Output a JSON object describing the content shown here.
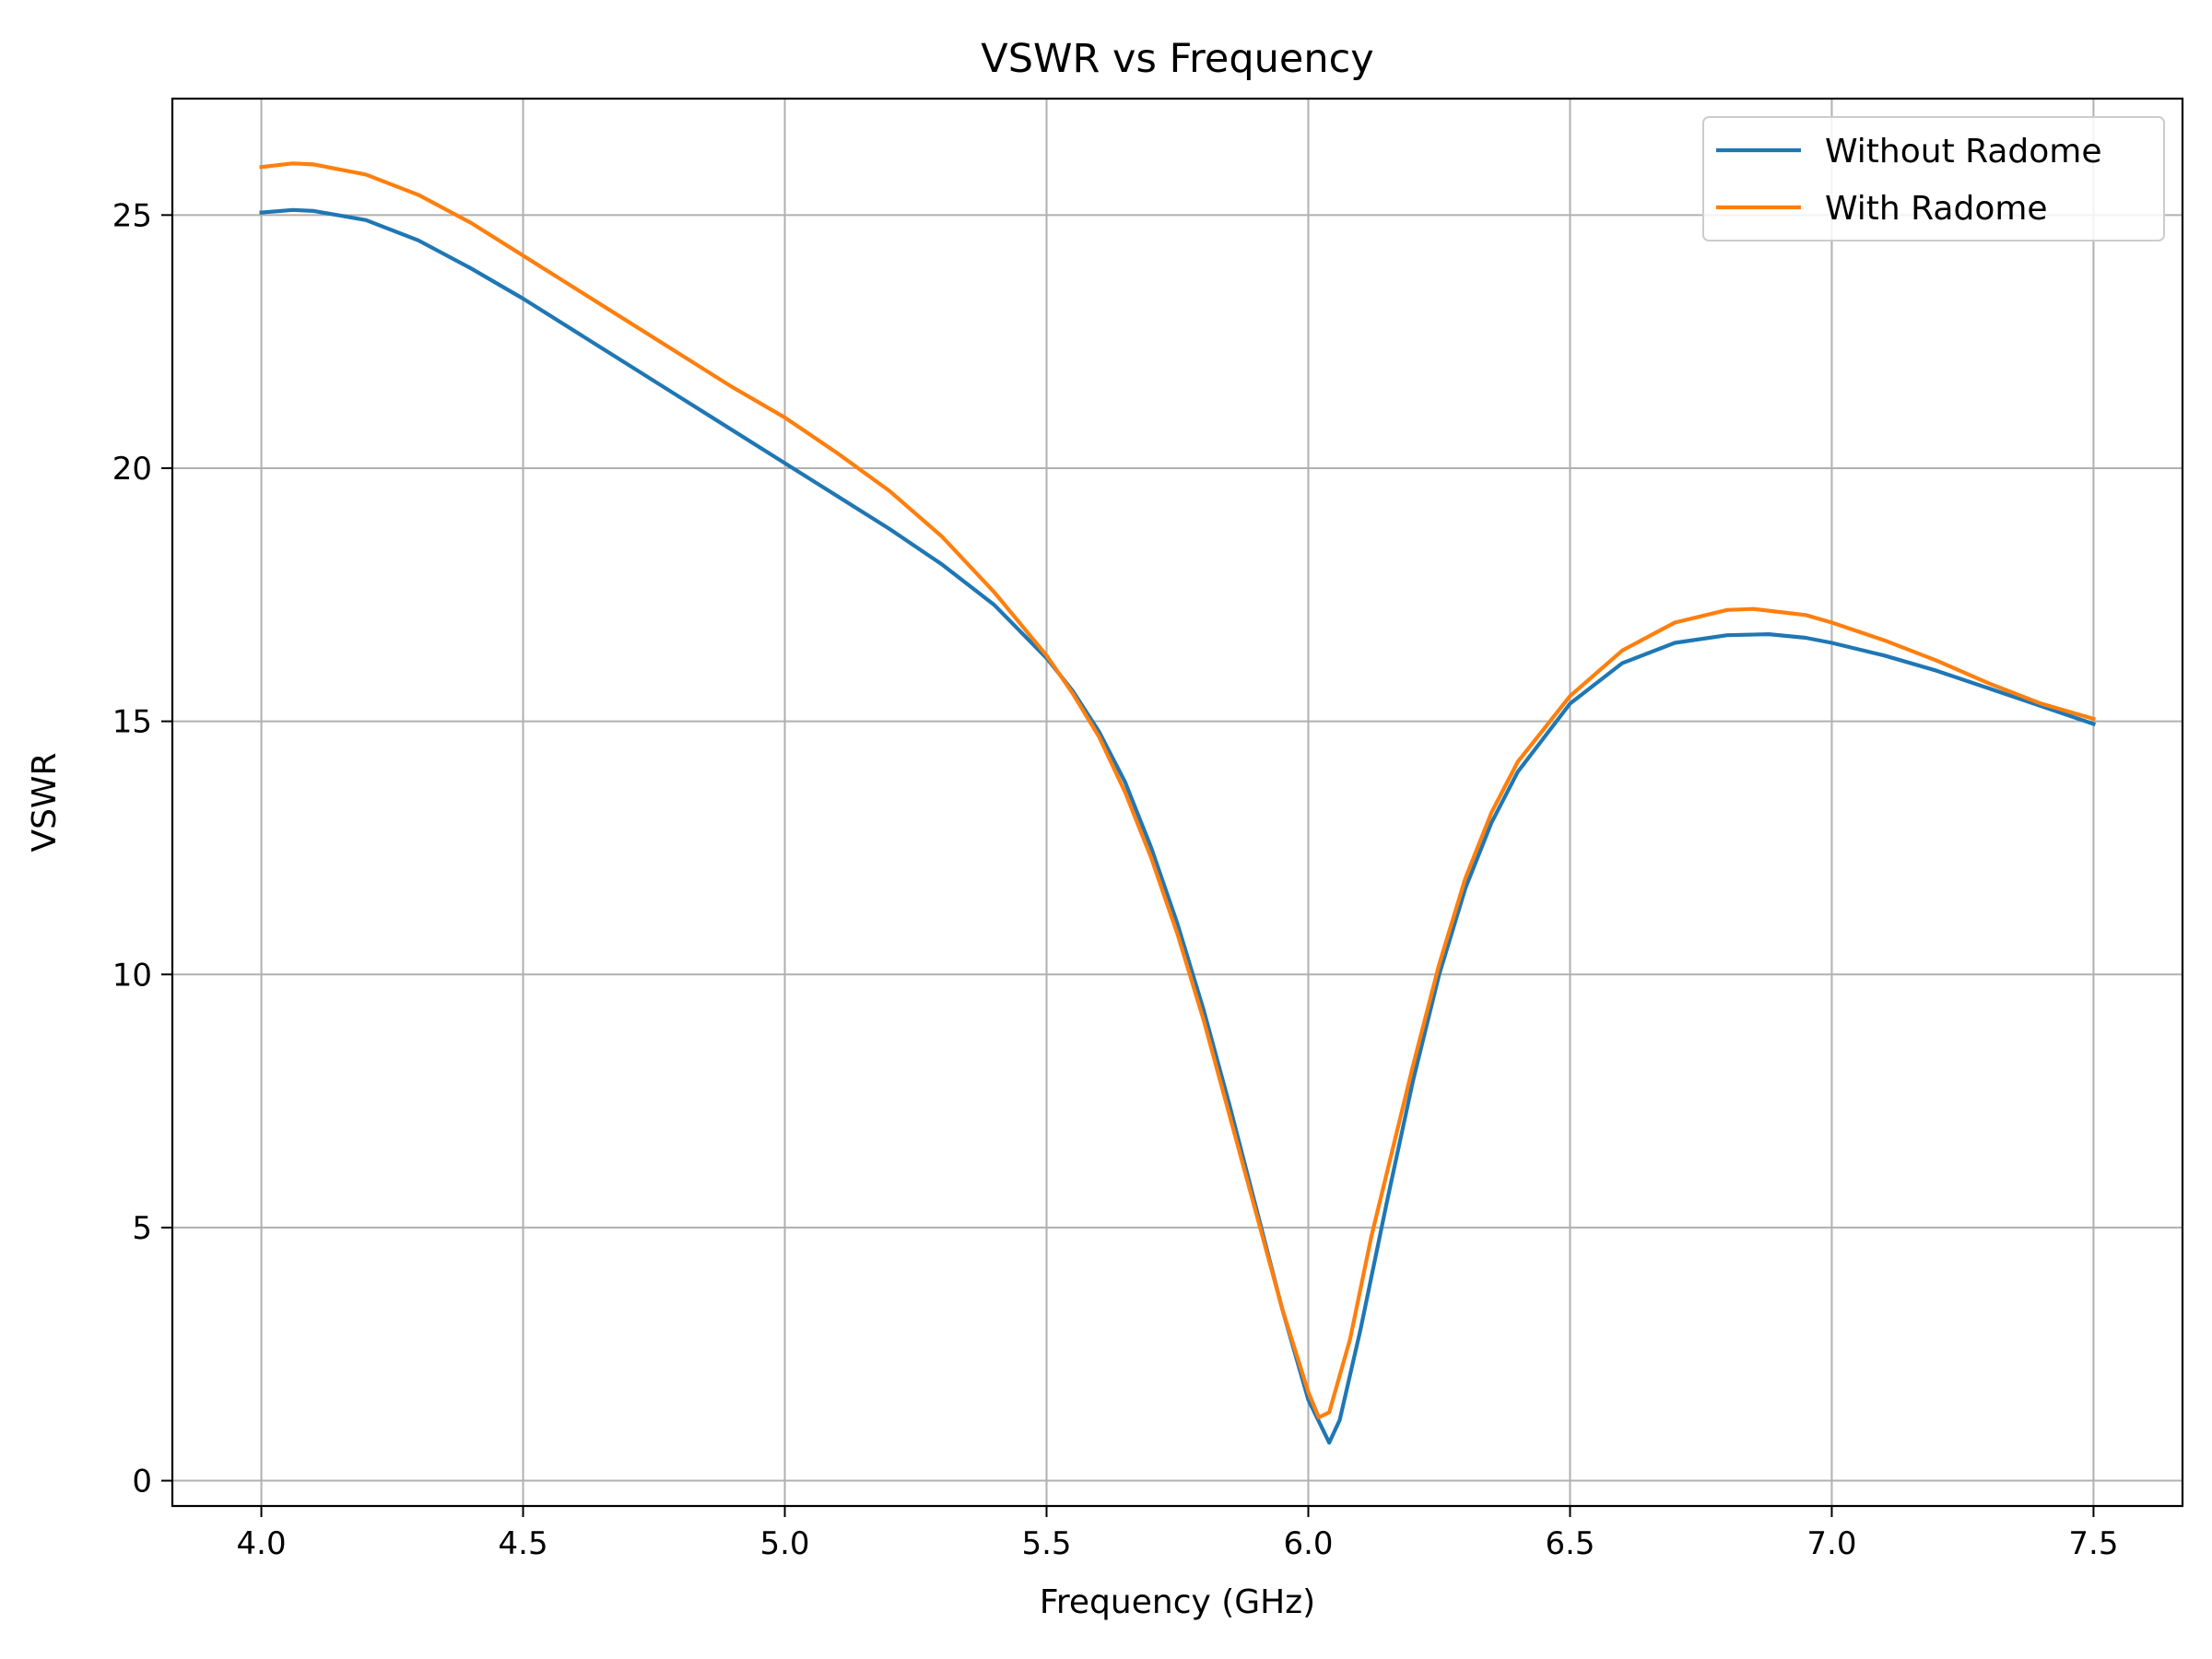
{
  "chart_data": {
    "type": "line",
    "title": "VSWR vs Frequency",
    "xlabel": "Frequency (GHz)",
    "ylabel": "VSWR",
    "xlim": [
      3.83,
      7.67
    ],
    "ylim": [
      -0.5,
      27.3
    ],
    "grid": true,
    "legend_position": "top-right",
    "x_ticks": [
      4.0,
      4.5,
      5.0,
      5.5,
      6.0,
      6.5,
      7.0,
      7.5
    ],
    "x_tick_labels": [
      "4.0",
      "4.5",
      "5.0",
      "5.5",
      "6.0",
      "6.5",
      "7.0",
      "7.5"
    ],
    "y_ticks": [
      0,
      5,
      10,
      15,
      20,
      25
    ],
    "y_tick_labels": [
      "0",
      "5",
      "10",
      "15",
      "20",
      "25"
    ],
    "series": [
      {
        "name": "Without Radome",
        "color": "#1f77b4",
        "points": [
          [
            4.0,
            25.05
          ],
          [
            4.06,
            25.1
          ],
          [
            4.1,
            25.08
          ],
          [
            4.2,
            24.9
          ],
          [
            4.3,
            24.5
          ],
          [
            4.4,
            23.95
          ],
          [
            4.5,
            23.35
          ],
          [
            4.6,
            22.7
          ],
          [
            4.7,
            22.05
          ],
          [
            4.8,
            21.4
          ],
          [
            4.9,
            20.75
          ],
          [
            5.0,
            20.1
          ],
          [
            5.1,
            19.45
          ],
          [
            5.2,
            18.8
          ],
          [
            5.3,
            18.1
          ],
          [
            5.4,
            17.3
          ],
          [
            5.5,
            16.25
          ],
          [
            5.55,
            15.6
          ],
          [
            5.6,
            14.8
          ],
          [
            5.65,
            13.8
          ],
          [
            5.7,
            12.5
          ],
          [
            5.75,
            11.0
          ],
          [
            5.8,
            9.3
          ],
          [
            5.85,
            7.4
          ],
          [
            5.9,
            5.4
          ],
          [
            5.95,
            3.4
          ],
          [
            6.0,
            1.6
          ],
          [
            6.04,
            0.75
          ],
          [
            6.06,
            1.2
          ],
          [
            6.1,
            3.0
          ],
          [
            6.15,
            5.5
          ],
          [
            6.2,
            7.9
          ],
          [
            6.25,
            10.0
          ],
          [
            6.3,
            11.7
          ],
          [
            6.35,
            13.0
          ],
          [
            6.4,
            14.0
          ],
          [
            6.5,
            15.35
          ],
          [
            6.6,
            16.15
          ],
          [
            6.7,
            16.55
          ],
          [
            6.8,
            16.7
          ],
          [
            6.88,
            16.72
          ],
          [
            6.95,
            16.65
          ],
          [
            7.0,
            16.55
          ],
          [
            7.1,
            16.3
          ],
          [
            7.2,
            16.0
          ],
          [
            7.3,
            15.65
          ],
          [
            7.4,
            15.3
          ],
          [
            7.5,
            14.95
          ]
        ]
      },
      {
        "name": "With Radome",
        "color": "#ff7f0e",
        "points": [
          [
            4.0,
            25.95
          ],
          [
            4.06,
            26.02
          ],
          [
            4.1,
            26.0
          ],
          [
            4.2,
            25.8
          ],
          [
            4.3,
            25.4
          ],
          [
            4.4,
            24.85
          ],
          [
            4.5,
            24.2
          ],
          [
            4.6,
            23.55
          ],
          [
            4.7,
            22.9
          ],
          [
            4.8,
            22.25
          ],
          [
            4.9,
            21.6
          ],
          [
            5.0,
            21.0
          ],
          [
            5.1,
            20.3
          ],
          [
            5.2,
            19.55
          ],
          [
            5.3,
            18.65
          ],
          [
            5.4,
            17.55
          ],
          [
            5.5,
            16.3
          ],
          [
            5.55,
            15.55
          ],
          [
            5.6,
            14.7
          ],
          [
            5.65,
            13.6
          ],
          [
            5.7,
            12.3
          ],
          [
            5.75,
            10.8
          ],
          [
            5.8,
            9.1
          ],
          [
            5.85,
            7.2
          ],
          [
            5.9,
            5.3
          ],
          [
            5.95,
            3.4
          ],
          [
            6.0,
            1.75
          ],
          [
            6.02,
            1.25
          ],
          [
            6.04,
            1.35
          ],
          [
            6.08,
            2.8
          ],
          [
            6.12,
            4.8
          ],
          [
            6.2,
            8.2
          ],
          [
            6.25,
            10.2
          ],
          [
            6.3,
            11.9
          ],
          [
            6.35,
            13.2
          ],
          [
            6.4,
            14.2
          ],
          [
            6.5,
            15.5
          ],
          [
            6.6,
            16.4
          ],
          [
            6.7,
            16.95
          ],
          [
            6.8,
            17.2
          ],
          [
            6.85,
            17.22
          ],
          [
            6.95,
            17.1
          ],
          [
            7.0,
            16.95
          ],
          [
            7.1,
            16.6
          ],
          [
            7.2,
            16.2
          ],
          [
            7.3,
            15.75
          ],
          [
            7.4,
            15.35
          ],
          [
            7.5,
            15.05
          ]
        ]
      }
    ]
  }
}
